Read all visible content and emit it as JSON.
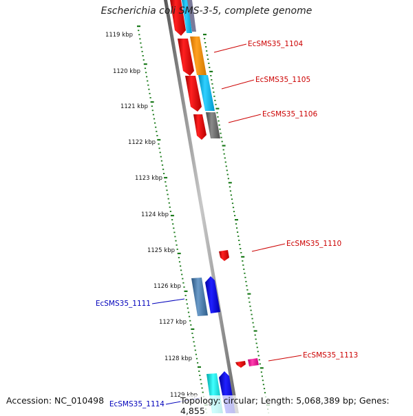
{
  "title": "Escherichia coli SMS-3-5, complete genome",
  "footer": {
    "accession": "Accession: NC_010498",
    "stats": "Topology: circular; Length: 5,068,389 bp; Genes: 4,855"
  },
  "map": {
    "kbp_ticks": [
      {
        "label": "1119 kbp",
        "kbp": 1119
      },
      {
        "label": "1120 kbp",
        "kbp": 1120
      },
      {
        "label": "1121 kbp",
        "kbp": 1121
      },
      {
        "label": "1122 kbp",
        "kbp": 1122
      },
      {
        "label": "1123 kbp",
        "kbp": 1123
      },
      {
        "label": "1124 kbp",
        "kbp": 1124
      },
      {
        "label": "1125 kbp",
        "kbp": 1125
      },
      {
        "label": "1126 kbp",
        "kbp": 1126
      },
      {
        "label": "1127 kbp",
        "kbp": 1127
      },
      {
        "label": "1128 kbp",
        "kbp": 1128
      },
      {
        "label": "1129 kbp",
        "kbp": 1129
      }
    ],
    "gene_labels": [
      {
        "text": "EcSMS35_1104",
        "strand": "forward",
        "color": "#cc0000"
      },
      {
        "text": "EcSMS35_1105",
        "strand": "forward",
        "color": "#cc0000"
      },
      {
        "text": "EcSMS35_1106",
        "strand": "forward",
        "color": "#cc0000"
      },
      {
        "text": "EcSMS35_1110",
        "strand": "forward",
        "color": "#cc0000"
      },
      {
        "text": "EcSMS35_1111",
        "strand": "reverse",
        "color": "#0000bb"
      },
      {
        "text": "EcSMS35_1113",
        "strand": "forward",
        "color": "#cc0000"
      },
      {
        "text": "EcSMS35_1114",
        "strand": "reverse",
        "color": "#0000bb"
      }
    ],
    "colors": {
      "backbone": "#888888",
      "tick": "#1a7a1a",
      "cds_forward": "#e8001a",
      "cds_reverse": "#0000ee",
      "blast_orange": "#ff9900",
      "blast_cyan": "#00bbee",
      "blast_gray": "#707070",
      "blast_steel": "#4477aa",
      "blast_magenta": "#ff2299",
      "blast_aqua": "#00dddd"
    }
  }
}
